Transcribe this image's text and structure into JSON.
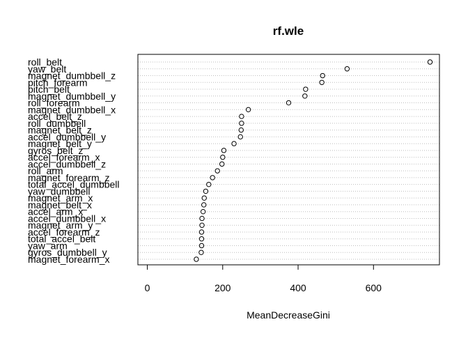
{
  "chart_data": {
    "type": "scatter",
    "title": "rf.wle",
    "xlabel": "MeanDecreaseGini",
    "ylabel": "",
    "xlim": [
      -25,
      775
    ],
    "xticks": [
      0,
      200,
      400,
      600
    ],
    "grid": "dotted horizontal lines per variable",
    "marker": "open-circle",
    "colors": {
      "axis": "#000000",
      "grid": "#bebebe",
      "points": "#000000"
    },
    "points": [
      {
        "label": "roll_belt",
        "value": 750
      },
      {
        "label": "yaw_belt",
        "value": 530
      },
      {
        "label": "magnet_dumbbell_z",
        "value": 465
      },
      {
        "label": "pitch_forearm",
        "value": 463
      },
      {
        "label": "pitch_belt",
        "value": 420
      },
      {
        "label": "magnet_dumbbell_y",
        "value": 418
      },
      {
        "label": "roll_forearm",
        "value": 375
      },
      {
        "label": "magnet_dumbbell_x",
        "value": 268
      },
      {
        "label": "accel_belt_z",
        "value": 250
      },
      {
        "label": "roll_dumbbell",
        "value": 250
      },
      {
        "label": "magnet_belt_z",
        "value": 249
      },
      {
        "label": "accel_dumbbell_y",
        "value": 247
      },
      {
        "label": "magnet_belt_y",
        "value": 230
      },
      {
        "label": "gyros_belt_z",
        "value": 203
      },
      {
        "label": "accel_forearm_x",
        "value": 200
      },
      {
        "label": "accel_dumbbell_z",
        "value": 198
      },
      {
        "label": "roll_arm",
        "value": 186
      },
      {
        "label": "magnet_forearm_z",
        "value": 173
      },
      {
        "label": "total_accel_dumbbell",
        "value": 163
      },
      {
        "label": "yaw_dumbbell",
        "value": 155
      },
      {
        "label": "magnet_arm_x",
        "value": 151
      },
      {
        "label": "magnet_belt_x",
        "value": 150
      },
      {
        "label": "accel_arm_x",
        "value": 148
      },
      {
        "label": "accel_dumbbell_x",
        "value": 145
      },
      {
        "label": "magnet_arm_y",
        "value": 145
      },
      {
        "label": "accel_forearm_z",
        "value": 144
      },
      {
        "label": "total_accel_belt",
        "value": 144
      },
      {
        "label": "yaw_arm",
        "value": 144
      },
      {
        "label": "gyros_dumbbell_y",
        "value": 143
      },
      {
        "label": "magnet_forearm_x",
        "value": 130
      }
    ]
  }
}
